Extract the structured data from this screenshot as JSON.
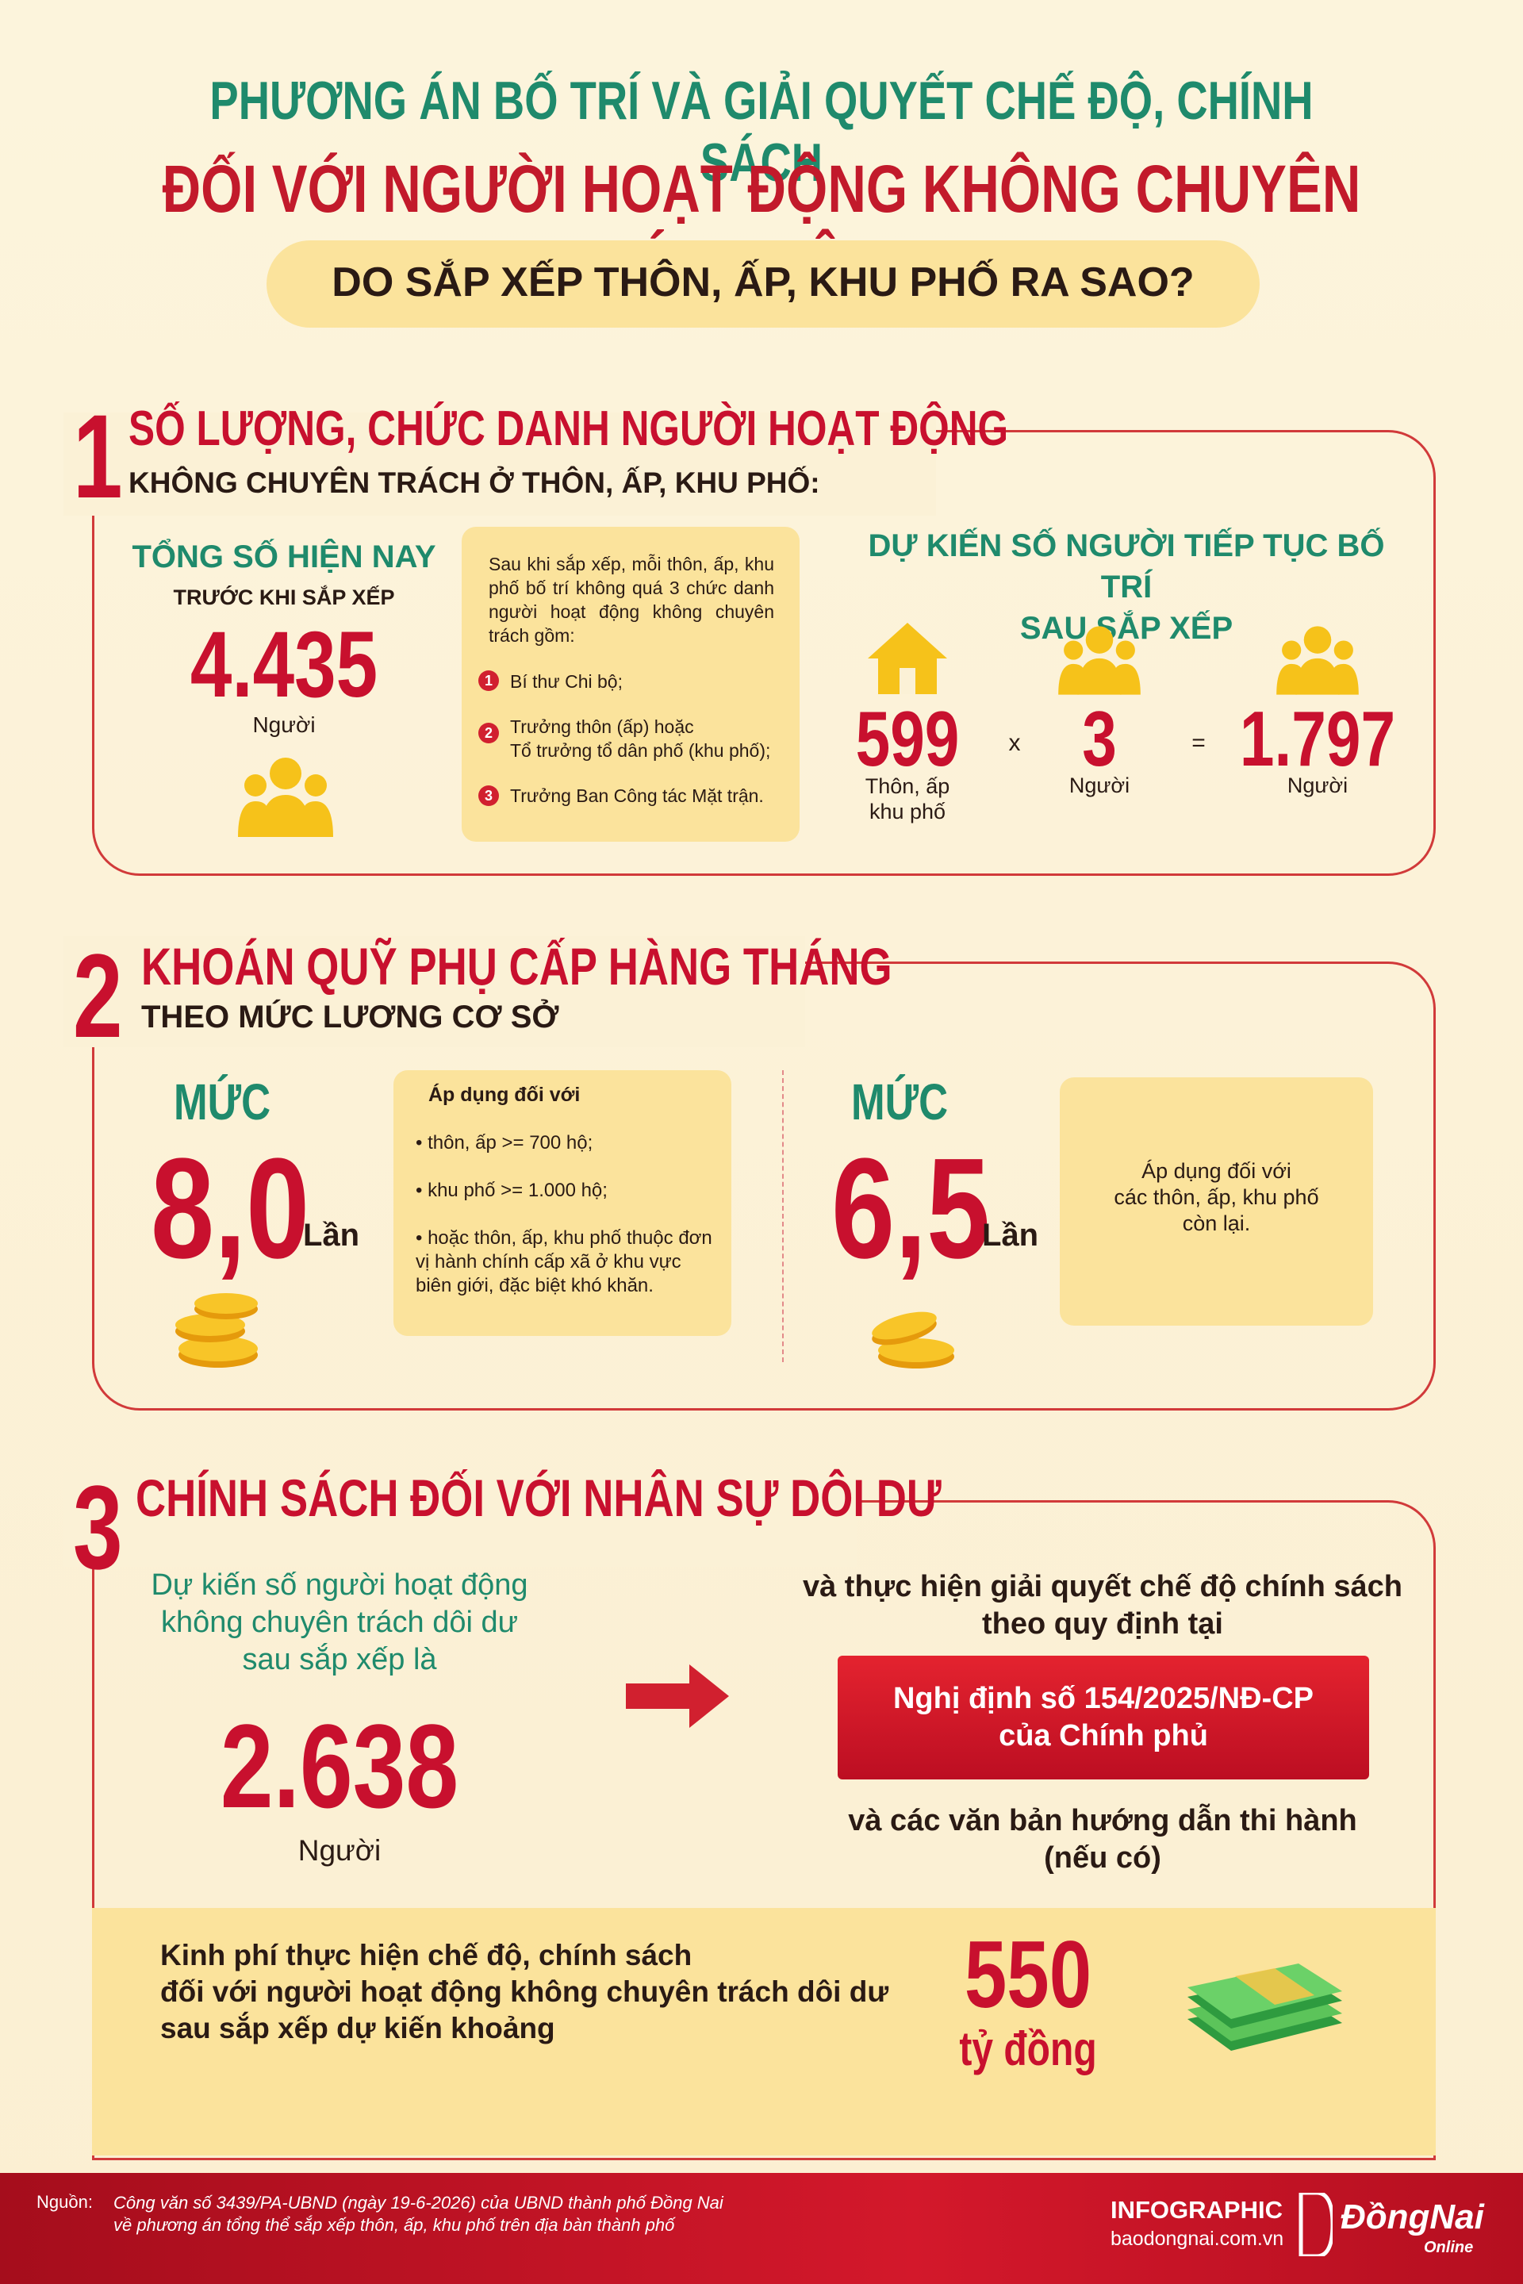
{
  "header": {
    "title_line1": "PHƯƠNG ÁN BỐ TRÍ VÀ GIẢI QUYẾT CHẾ ĐỘ, CHÍNH SÁCH",
    "title_line2": "ĐỐI VỚI NGƯỜI HOẠT ĐỘNG KHÔNG CHUYÊN TRÁCH DÔI DƯ",
    "subtitle": "DO SẮP XẾP THÔN, ẤP, KHU PHỐ RA SAO?"
  },
  "section1": {
    "number": "1",
    "heading": "SỐ LƯỢNG, CHỨC DANH NGƯỜI HOẠT ĐỘNG",
    "subheading": "KHÔNG CHUYÊN TRÁCH Ở THÔN, ẤP, KHU PHỐ:",
    "current_label": "TỔNG SỐ HIỆN NAY",
    "current_sublabel": "TRƯỚC KHI SẮP XẾP",
    "current_value": "4.435",
    "current_unit": "Người",
    "note_intro": "Sau khi sắp xếp, mỗi thôn, ấp, khu phố bố trí không quá 3 chức danh người hoạt động không chuyên trách gồm:",
    "note_items": [
      {
        "number": "1",
        "text": "Bí thư Chi bộ;"
      },
      {
        "number": "2",
        "text": "Trưởng thôn (ấp) hoặc\nTổ trưởng tổ dân phố (khu phố);"
      },
      {
        "number": "3",
        "text": "Trưởng Ban Công tác Mặt trận."
      }
    ],
    "forecast_heading": "DỰ KIẾN SỐ NGƯỜI TIẾP TỤC BỐ TRÍ\nSAU SẮP XẾP",
    "units": {
      "value": "599",
      "label": "Thôn, ấp\nkhu phố"
    },
    "multiply": "x",
    "per_unit": {
      "value": "3",
      "label": "Người"
    },
    "equals": "=",
    "total": {
      "value": "1.797",
      "label": "Người"
    }
  },
  "section2": {
    "number": "2",
    "heading": "KHOÁN QUỸ PHỤ CẤP HÀNG THÁNG",
    "subheading": "THEO MỨC LƯƠNG CƠ SỞ",
    "level_a": {
      "label": "MỨC",
      "value": "8,0",
      "unit": "Lần",
      "note_intro": "Áp dụng đối với",
      "note_items": [
        "thôn, ấp >= 700 hộ;",
        "khu phố >= 1.000 hộ;",
        "hoặc thôn, ấp, khu phố thuộc đơn vị hành chính cấp xã ở khu vực biên giới, đặc biệt khó khăn."
      ]
    },
    "level_b": {
      "label": "MỨC",
      "value": "6,5",
      "unit": "Lần",
      "note": "Áp dụng đối với\ncác thôn, ấp, khu phố\ncòn lại."
    }
  },
  "section3": {
    "number": "3",
    "heading": "CHÍNH SÁCH ĐỐI VỚI NHÂN SỰ DÔI DƯ",
    "left_text": "Dự kiến số người hoạt động\nkhông chuyên trách dôi dư\nsau sắp xếp là",
    "surplus_value": "2.638",
    "surplus_unit": "Người",
    "right_text": "và thực hiện giải quyết chế độ chính sách\ntheo quy định tại",
    "decree": "Nghị định số 154/2025/NĐ-CP\ncủa Chính phủ",
    "right_text2": "và các văn bản hướng dẫn thi hành\n(nếu có)",
    "budget_text": "Kinh phí thực hiện chế độ, chính sách\nđối với người hoạt động không chuyên trách dôi dư\nsau sắp xếp dự kiến khoảng",
    "budget_value": "550",
    "budget_unit": "tỷ đồng"
  },
  "footer": {
    "source_label": "Nguồn:",
    "source_text": "Công văn số 3439/PA-UBND (ngày 19-6-2026) của UBND thành phố Đồng Nai\nvề phương án tổng thể sắp xếp thôn, ấp, khu phố trên địa bàn thành phố",
    "brand": "INFOGRAPHIC",
    "website": "baodongnai.com.vn",
    "logo_text": "ĐồngNai",
    "logo_sub": "Online"
  }
}
